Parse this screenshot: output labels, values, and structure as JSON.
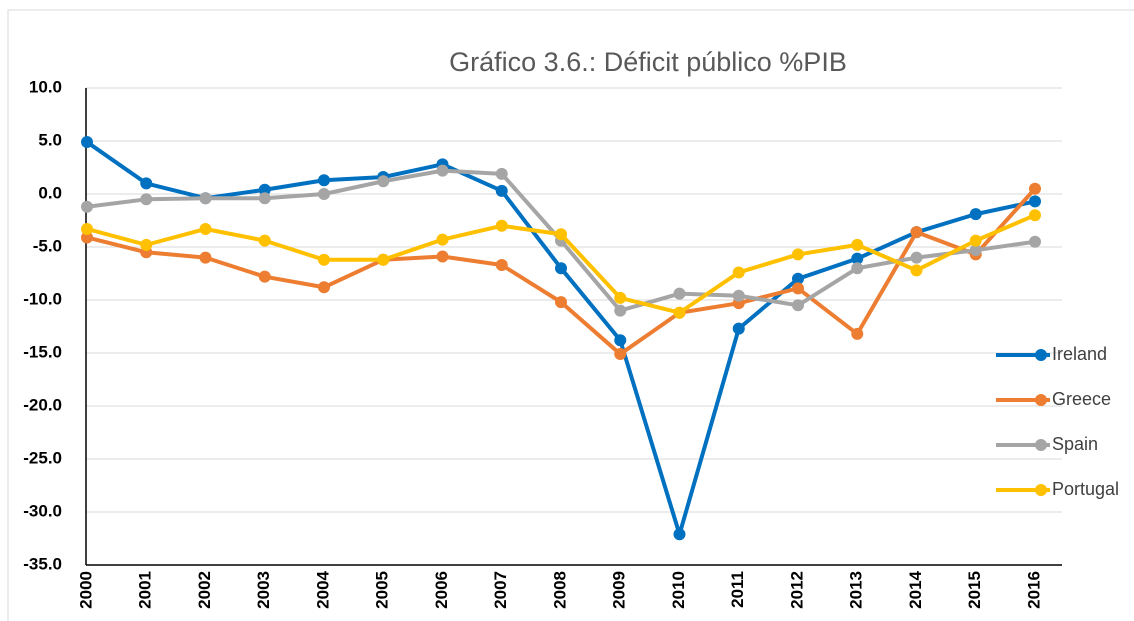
{
  "chart_data": {
    "type": "line",
    "title": "Gráfico 3.6.: Déficit público %PIB",
    "categories": [
      "2000",
      "2001",
      "2002",
      "2003",
      "2004",
      "2005",
      "2006",
      "2007",
      "2008",
      "2009",
      "2010",
      "2011",
      "2012",
      "2013",
      "2014",
      "2015",
      "2016"
    ],
    "series": [
      {
        "name": "Ireland",
        "color": "#0070c0",
        "values": [
          4.9,
          1.0,
          -0.4,
          0.4,
          1.3,
          1.6,
          2.8,
          0.3,
          -7.0,
          -13.8,
          -32.1,
          -12.7,
          -8.0,
          -6.1,
          -3.6,
          -1.9,
          -0.7
        ]
      },
      {
        "name": "Greece",
        "color": "#ed7d31",
        "values": [
          -4.1,
          -5.5,
          -6.0,
          -7.8,
          -8.8,
          -6.2,
          -5.9,
          -6.7,
          -10.2,
          -15.1,
          -11.2,
          -10.3,
          -8.9,
          -13.2,
          -3.6,
          -5.7,
          0.5
        ]
      },
      {
        "name": "Spain",
        "color": "#a5a5a5",
        "values": [
          -1.2,
          -0.5,
          -0.4,
          -0.4,
          0.0,
          1.2,
          2.2,
          1.9,
          -4.4,
          -11.0,
          -9.4,
          -9.6,
          -10.5,
          -7.0,
          -6.0,
          -5.3,
          -4.5
        ]
      },
      {
        "name": "Portugal",
        "color": "#ffc000",
        "values": [
          -3.3,
          -4.8,
          -3.3,
          -4.4,
          -6.2,
          -6.2,
          -4.3,
          -3.0,
          -3.8,
          -9.8,
          -11.2,
          -7.4,
          -5.7,
          -4.8,
          -7.2,
          -4.4,
          -2.0
        ]
      }
    ],
    "ylim": [
      -35,
      10
    ],
    "yticks": [
      {
        "value": -35,
        "label": "-35.0"
      },
      {
        "value": -30,
        "label": "-30.0"
      },
      {
        "value": -25,
        "label": "-25.0"
      },
      {
        "value": -20,
        "label": "-20.0"
      },
      {
        "value": -15,
        "label": "-15.0"
      },
      {
        "value": -10,
        "label": "-10.0"
      },
      {
        "value": -5,
        "label": "-5.0"
      },
      {
        "value": 0,
        "label": "0.0"
      },
      {
        "value": 5,
        "label": "5.0"
      },
      {
        "value": 10,
        "label": "10.0"
      }
    ],
    "grid": true,
    "legend": "right"
  }
}
